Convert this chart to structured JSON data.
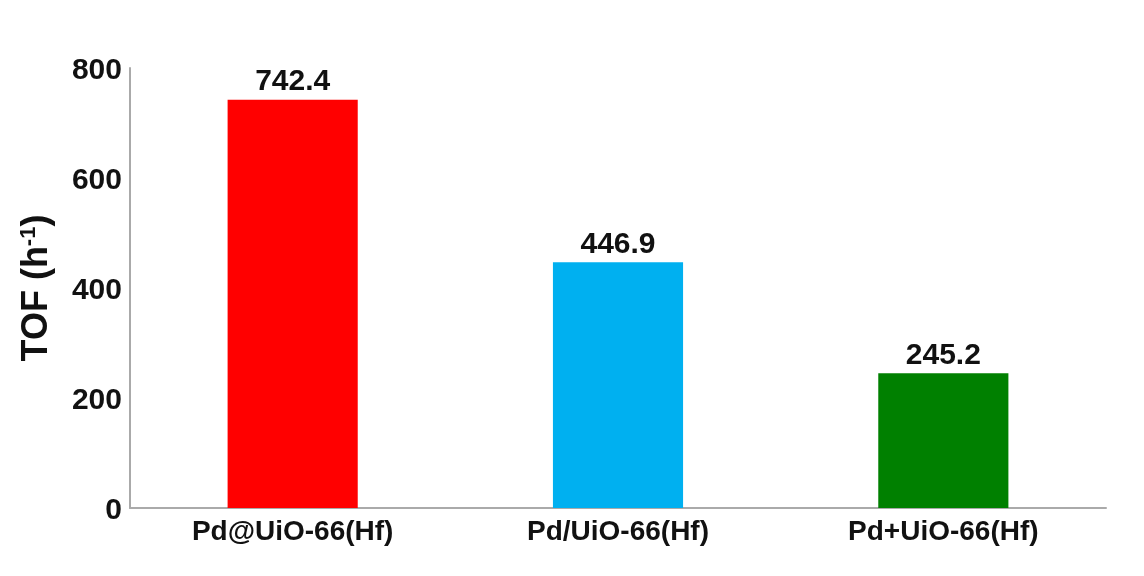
{
  "chart_data": {
    "type": "bar",
    "ylabel": "TOF (h$^{-1}$)",
    "categories": [
      "Pd@UiO-66(Hf)",
      "Pd/UiO-66(Hf)",
      "Pd+UiO-66(Hf)"
    ],
    "values": [
      742.4,
      446.9,
      245.2
    ],
    "colors": [
      "#ff0000",
      "#00b0f0",
      "#008000"
    ],
    "ylim": [
      0,
      800
    ],
    "yticks": [
      0,
      200,
      400,
      600,
      800
    ],
    "grid": false,
    "data_labels": true
  }
}
